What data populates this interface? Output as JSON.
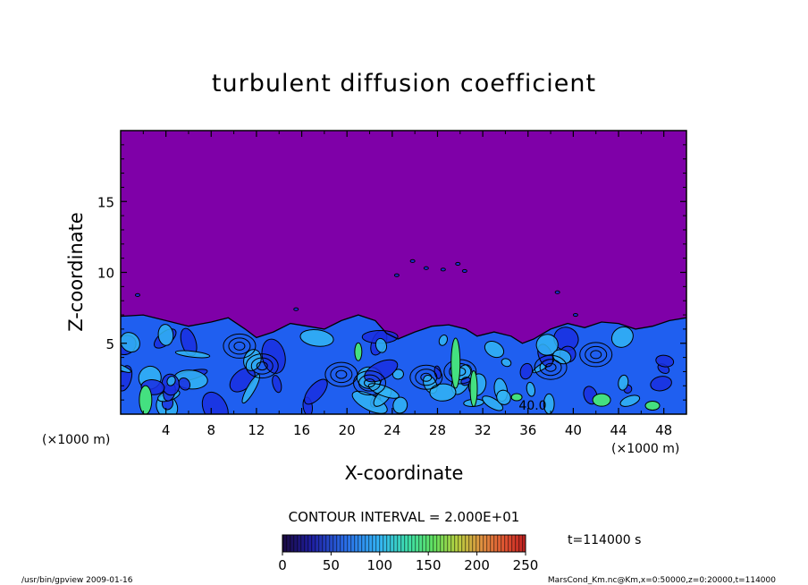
{
  "chart_data": {
    "type": "heatmap",
    "title": "turbulent diffusion coefficient",
    "xlabel": "X-coordinate",
    "ylabel": "Z-coordinate",
    "x_unit": "(×1000 m)",
    "z_unit": "(×1000 m)",
    "xlim": [
      0,
      50
    ],
    "ylim": [
      0,
      20
    ],
    "x_ticks": [
      4,
      8,
      12,
      16,
      20,
      24,
      28,
      32,
      36,
      40,
      44,
      48
    ],
    "y_ticks": [
      5,
      10,
      15
    ],
    "contour_interval": "CONTOUR INTERVAL = 2.000E+01",
    "contour_label": "40.0",
    "time_label": "t=114000 s",
    "colorbar": {
      "min": 0,
      "max": 250,
      "ticks": [
        0,
        50,
        100,
        150,
        200,
        250
      ]
    },
    "turbulent_layer_top": [
      {
        "x": 0,
        "z": 6.9
      },
      {
        "x": 2,
        "z": 7.0
      },
      {
        "x": 4,
        "z": 6.6
      },
      {
        "x": 6,
        "z": 6.2
      },
      {
        "x": 8,
        "z": 6.5
      },
      {
        "x": 9.5,
        "z": 6.8
      },
      {
        "x": 11,
        "z": 6.0
      },
      {
        "x": 12,
        "z": 5.4
      },
      {
        "x": 13.5,
        "z": 5.8
      },
      {
        "x": 15,
        "z": 6.4
      },
      {
        "x": 16.5,
        "z": 6.2
      },
      {
        "x": 18,
        "z": 6.0
      },
      {
        "x": 19.5,
        "z": 6.6
      },
      {
        "x": 21,
        "z": 7.0
      },
      {
        "x": 22.5,
        "z": 6.6
      },
      {
        "x": 23.5,
        "z": 5.7
      },
      {
        "x": 24.5,
        "z": 5.3
      },
      {
        "x": 26,
        "z": 5.8
      },
      {
        "x": 27.5,
        "z": 6.2
      },
      {
        "x": 29,
        "z": 6.3
      },
      {
        "x": 30.5,
        "z": 6.0
      },
      {
        "x": 31.5,
        "z": 5.5
      },
      {
        "x": 33,
        "z": 5.8
      },
      {
        "x": 34.5,
        "z": 5.5
      },
      {
        "x": 35.5,
        "z": 5.0
      },
      {
        "x": 36.5,
        "z": 5.3
      },
      {
        "x": 38,
        "z": 6.0
      },
      {
        "x": 39.5,
        "z": 6.4
      },
      {
        "x": 41,
        "z": 6.1
      },
      {
        "x": 42.5,
        "z": 6.5
      },
      {
        "x": 44,
        "z": 6.4
      },
      {
        "x": 45.5,
        "z": 6.0
      },
      {
        "x": 47,
        "z": 6.2
      },
      {
        "x": 48.5,
        "z": 6.6
      },
      {
        "x": 50,
        "z": 6.8
      }
    ]
  },
  "footer": {
    "left": "/usr/bin/gpview   2009-01-16",
    "right": "MarsCond_Km.nc@Km,x=0:50000,z=0:20000,t=114000"
  },
  "colors": {
    "background_field": "#7f00a8",
    "turbulent_fill": "#1f5ff0",
    "light_blue": "#33b5f5",
    "dark_blue": "#1a2fe0",
    "green": "#44e080",
    "contour": "#000000"
  }
}
